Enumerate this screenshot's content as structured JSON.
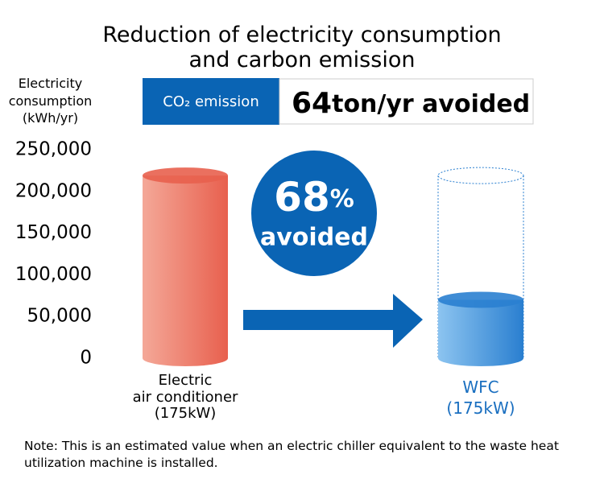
{
  "chart_data": {
    "type": "cylinder",
    "title": "Reduction of electricity consumption\nand carbon emission",
    "y_label": "Electricity\nconsumption\n(kWh/yr)",
    "categories": [
      "Electric\nair conditioner\n(175kW)",
      "WFC\n(175kW)"
    ],
    "values": [
      219000,
      70000
    ],
    "colors": [
      "#e8604e",
      "#2a7fd0"
    ],
    "ylim": [
      0,
      250000
    ],
    "yticks": [
      0,
      {
        "value": 50000,
        "label": "50,000"
      },
      {
        "value": 100000,
        "label": "100,000"
      },
      {
        "value": 150000,
        "label": "150,000"
      },
      {
        "value": 200000,
        "label": "200,000"
      },
      {
        "value": 250000,
        "label": "250,000"
      }
    ],
    "co2_label": "CO₂ emission",
    "co2_value": "64",
    "co2_unit": "ton/yr avoided",
    "reduction_value": "68",
    "reduction_unit": "%",
    "reduction_label": "avoided",
    "note": "Note: This is an estimated value when an electric chiller equivalent to the waste heat utilization machine is installed."
  }
}
